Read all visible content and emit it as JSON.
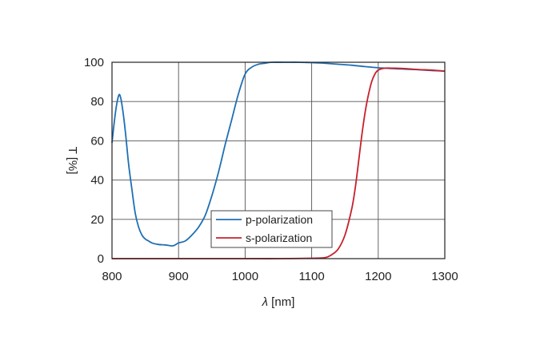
{
  "chart_data": {
    "type": "line",
    "xlabel_symbol": "λ",
    "xlabel_unit": " [nm]",
    "ylabel": "T [%]",
    "xlim": [
      800,
      1300
    ],
    "ylim": [
      0,
      100
    ],
    "xticks": [
      800,
      900,
      1000,
      1100,
      1200,
      1300
    ],
    "yticks": [
      0,
      20,
      40,
      60,
      80,
      100
    ],
    "grid": true,
    "legend_position": "lower-center",
    "series": [
      {
        "name": "p-polarization",
        "color": "#1f6fb4",
        "x": [
          800,
          805,
          810,
          813,
          816,
          820,
          825,
          830,
          835,
          840,
          845,
          850,
          855,
          860,
          870,
          880,
          890,
          895,
          900,
          910,
          920,
          930,
          940,
          950,
          960,
          970,
          980,
          990,
          1000,
          1010,
          1020,
          1030,
          1040,
          1060,
          1080,
          1100,
          1120,
          1140,
          1160,
          1180,
          1200,
          1220,
          1240,
          1260,
          1280,
          1300
        ],
        "y": [
          59,
          74,
          83,
          82,
          76,
          65,
          48,
          35,
          23,
          16,
          12,
          10,
          9,
          8,
          7.2,
          7,
          6.5,
          7,
          8,
          9,
          12,
          16,
          22,
          32,
          44,
          58,
          71,
          84,
          94,
          97.5,
          99,
          99.5,
          100,
          100,
          100,
          99.8,
          99.5,
          99,
          98.5,
          97.8,
          97.2,
          96.8,
          96.5,
          96.2,
          95.8,
          95.5
        ]
      },
      {
        "name": "s-polarization",
        "color": "#c7202b",
        "x": [
          800,
          900,
          1000,
          1050,
          1100,
          1120,
          1130,
          1140,
          1150,
          1160,
          1165,
          1170,
          1175,
          1180,
          1185,
          1190,
          1195,
          1200,
          1210,
          1220,
          1240,
          1260,
          1280,
          1300
        ],
        "y": [
          0,
          0,
          0,
          0,
          0.2,
          0.5,
          2,
          5,
          12,
          25,
          35,
          48,
          62,
          74,
          83,
          90,
          94,
          96,
          97,
          97,
          96.8,
          96.3,
          96,
          95.5
        ]
      }
    ]
  }
}
